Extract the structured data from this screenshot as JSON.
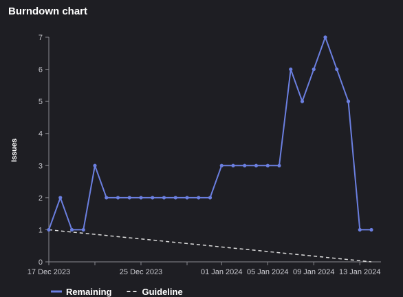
{
  "panel": {
    "title": "Burndown chart"
  },
  "colors": {
    "remaining": "#6b7fe0",
    "guideline": "#dcdcdc",
    "axis": "#8a8a90"
  },
  "chart_data": {
    "type": "line",
    "title": "Burndown chart",
    "xlabel": "",
    "ylabel": "Issues",
    "x_start": "2023-12-17",
    "x_end": "2024-01-14",
    "ylim": [
      0,
      7
    ],
    "yticks": [
      0,
      1,
      2,
      3,
      4,
      5,
      6,
      7
    ],
    "xticks": [
      {
        "date": "2023-12-17",
        "label": "17 Dec 2023"
      },
      {
        "date": "2023-12-21",
        "label": ""
      },
      {
        "date": "2023-12-25",
        "label": "25 Dec 2023"
      },
      {
        "date": "2023-12-29",
        "label": ""
      },
      {
        "date": "2024-01-01",
        "label": "01 Jan 2024"
      },
      {
        "date": "2024-01-05",
        "label": "05 Jan 2024"
      },
      {
        "date": "2024-01-09",
        "label": "09 Jan 2024"
      },
      {
        "date": "2024-01-13",
        "label": "13 Jan 2024"
      }
    ],
    "legend_position": "bottom-left",
    "series": [
      {
        "name": "Remaining",
        "style": "solid",
        "points": [
          {
            "x": "2023-12-17",
            "y": 1
          },
          {
            "x": "2023-12-18",
            "y": 2
          },
          {
            "x": "2023-12-19",
            "y": 1
          },
          {
            "x": "2023-12-20",
            "y": 1
          },
          {
            "x": "2023-12-21",
            "y": 3
          },
          {
            "x": "2023-12-22",
            "y": 2
          },
          {
            "x": "2023-12-23",
            "y": 2
          },
          {
            "x": "2023-12-24",
            "y": 2
          },
          {
            "x": "2023-12-25",
            "y": 2
          },
          {
            "x": "2023-12-26",
            "y": 2
          },
          {
            "x": "2023-12-27",
            "y": 2
          },
          {
            "x": "2023-12-28",
            "y": 2
          },
          {
            "x": "2023-12-29",
            "y": 2
          },
          {
            "x": "2023-12-30",
            "y": 2
          },
          {
            "x": "2023-12-31",
            "y": 2
          },
          {
            "x": "2024-01-01",
            "y": 3
          },
          {
            "x": "2024-01-02",
            "y": 3
          },
          {
            "x": "2024-01-03",
            "y": 3
          },
          {
            "x": "2024-01-04",
            "y": 3
          },
          {
            "x": "2024-01-05",
            "y": 3
          },
          {
            "x": "2024-01-06",
            "y": 3
          },
          {
            "x": "2024-01-07",
            "y": 6
          },
          {
            "x": "2024-01-08",
            "y": 5
          },
          {
            "x": "2024-01-09",
            "y": 6
          },
          {
            "x": "2024-01-10",
            "y": 7
          },
          {
            "x": "2024-01-11",
            "y": 6
          },
          {
            "x": "2024-01-12",
            "y": 5
          },
          {
            "x": "2024-01-13",
            "y": 1
          },
          {
            "x": "2024-01-14",
            "y": 1
          }
        ]
      },
      {
        "name": "Guideline",
        "style": "dashed",
        "points": [
          {
            "x": "2023-12-17",
            "y": 1
          },
          {
            "x": "2024-01-14",
            "y": 0
          }
        ]
      }
    ]
  }
}
